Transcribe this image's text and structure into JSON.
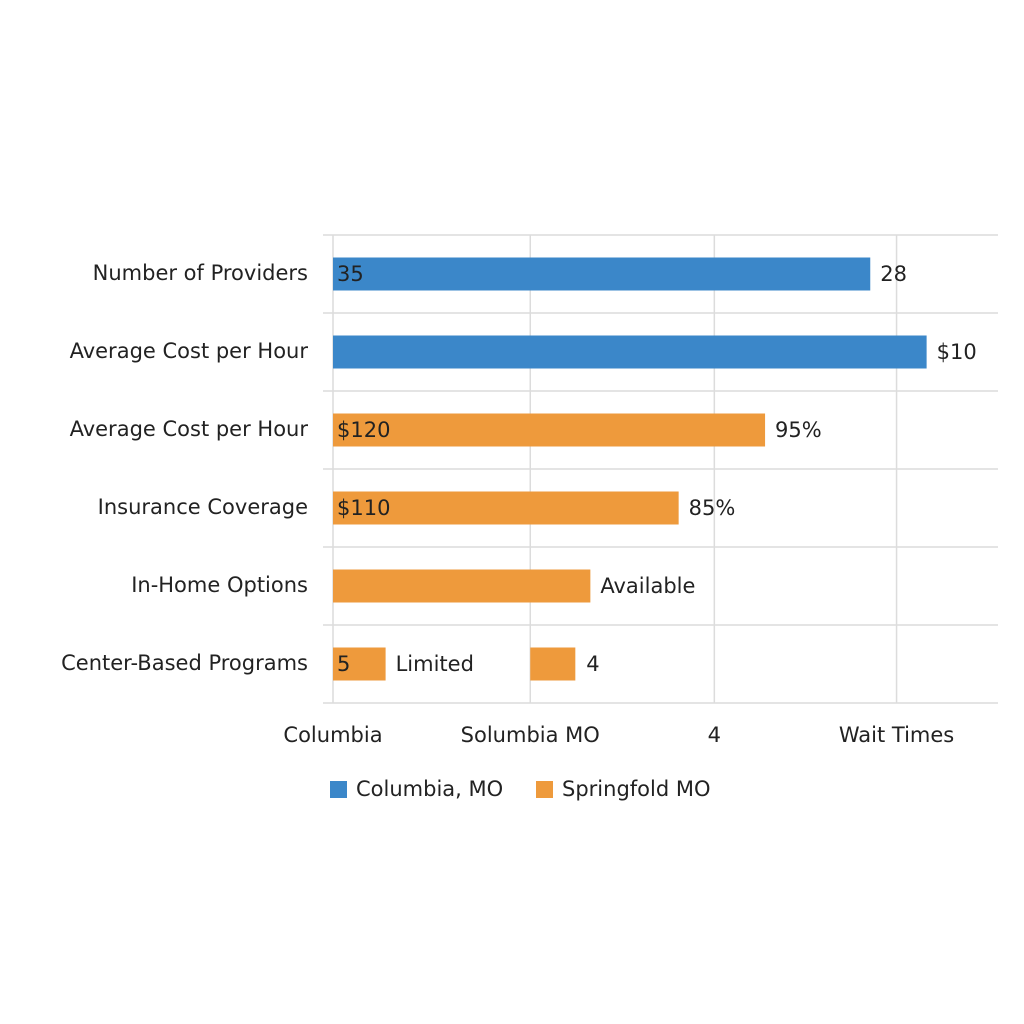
{
  "chart_data": {
    "type": "bar",
    "orientation": "horizontal",
    "categories": [
      "Number of Providers",
      "Average Cost per Hour",
      "Average Cost per Hour",
      "Insurance Coverage",
      "In-Home Options",
      "Center-Based Programs"
    ],
    "series": [
      {
        "name": "Columbia, MO",
        "color": "#3b87c9",
        "values": [
          2.86,
          3.16,
          null,
          null,
          null,
          null
        ],
        "inner_labels": [
          "35",
          null,
          null,
          null,
          null,
          null
        ],
        "outer_labels": [
          "28",
          "$10",
          null,
          null,
          null,
          null
        ]
      },
      {
        "name": "Springfold MO",
        "color": "#ee9a3c",
        "values": [
          null,
          null,
          2.3,
          1.84,
          1.37,
          0.28
        ],
        "inner_labels": [
          null,
          null,
          "$120",
          "$110",
          null,
          "5"
        ],
        "outer_labels": [
          null,
          null,
          "95%",
          "85%",
          "Available",
          "Limited"
        ],
        "ranges": [
          null,
          null,
          null,
          null,
          null,
          [
            1.05,
            1.29
          ]
        ],
        "range_labels": [
          null,
          null,
          null,
          null,
          null,
          "4"
        ]
      }
    ],
    "xlim": [
      0,
      3.54
    ],
    "xticks": [
      {
        "value": 0,
        "label": "Columbia"
      },
      {
        "value": 1.05,
        "label": "Solumbia MO"
      },
      {
        "value": 2.03,
        "label": "4"
      },
      {
        "value": 3,
        "label": "Wait Times"
      }
    ],
    "grid": true,
    "legend": "bottom"
  }
}
